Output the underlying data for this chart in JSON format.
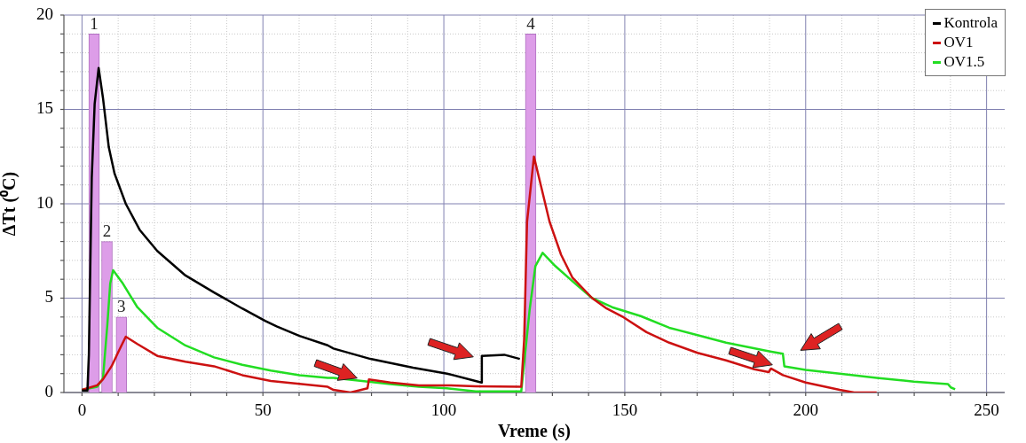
{
  "chart_data": {
    "type": "line",
    "xlabel": "Vreme (s)",
    "ylabel": "ΔTt (⁰C)",
    "xlim": [
      0,
      250
    ],
    "ylim": [
      0,
      20
    ],
    "xticks": [
      0,
      {
        "value": 10,
        "label": null
      },
      {
        "value": 20,
        "label": null
      },
      {
        "value": 30,
        "label": null
      },
      {
        "value": 40,
        "label": null
      },
      50,
      {
        "value": 60,
        "label": null
      },
      {
        "value": 70,
        "label": null
      },
      {
        "value": 80,
        "label": null
      },
      {
        "value": 90,
        "label": null
      },
      100,
      {
        "value": 110,
        "label": null
      },
      {
        "value": 120,
        "label": null
      },
      {
        "value": 130,
        "label": null
      },
      {
        "value": 140,
        "label": null
      },
      150,
      {
        "value": 160,
        "label": null
      },
      {
        "value": 170,
        "label": null
      },
      {
        "value": 180,
        "label": null
      },
      {
        "value": 190,
        "label": null
      },
      200,
      {
        "value": 210,
        "label": null
      },
      {
        "value": 220,
        "label": null
      },
      {
        "value": 230,
        "label": null
      },
      {
        "value": 240,
        "label": null
      },
      250
    ],
    "yticks": [
      0,
      {
        "value": 1,
        "label": null
      },
      {
        "value": 2,
        "label": null
      },
      {
        "value": 3,
        "label": null
      },
      {
        "value": 4,
        "label": null
      },
      5,
      {
        "value": 6,
        "label": null
      },
      {
        "value": 7,
        "label": null
      },
      {
        "value": 8,
        "label": null
      },
      {
        "value": 9,
        "label": null
      },
      10,
      {
        "value": 11,
        "label": null
      },
      {
        "value": 12,
        "label": null
      },
      {
        "value": 13,
        "label": null
      },
      {
        "value": 14,
        "label": null
      },
      15,
      {
        "value": 16,
        "label": null
      },
      {
        "value": 17,
        "label": null
      },
      {
        "value": 18,
        "label": null
      },
      {
        "value": 19,
        "label": null
      },
      20
    ],
    "annotations": [
      {
        "text": "1",
        "x": 3.35,
        "y": 19
      },
      {
        "text": "2",
        "x": 6.9,
        "y": 8
      },
      {
        "text": "3",
        "x": 10.9,
        "y": 4
      },
      {
        "text": "4",
        "x": 124,
        "y": 19
      }
    ],
    "grid": true,
    "legend": "top right",
    "marker": "none",
    "line_style": "solid",
    "series": [
      {
        "type": "bar",
        "color": "#dd9de8",
        "x": [
          3.35,
          6.9,
          10.9,
          124
        ],
        "values": [
          19,
          8,
          4,
          19
        ]
      },
      {
        "name": "Kontrola",
        "color": "#000000",
        "x": [
          0,
          1.5,
          1.9,
          2.7,
          3.5,
          4.6,
          5.8,
          7.4,
          9.0,
          12.1,
          16.0,
          20.8,
          28.6,
          36.5,
          44.3,
          50.6,
          53.8,
          60.1,
          67.9,
          69.5,
          79.7,
          91.5,
          100.9,
          110.4,
          110.5,
          116.7,
          121
        ],
        "values": [
          0.1,
          0.1,
          2.0,
          11.4,
          15.3,
          17.2,
          15.6,
          13.0,
          11.6,
          10.0,
          8.6,
          7.5,
          6.2,
          5.3,
          4.45,
          3.8,
          3.5,
          3.0,
          2.5,
          2.33,
          1.78,
          1.31,
          1.0,
          0.53,
          1.94,
          2.0,
          1.78
        ]
      },
      {
        "name": "OV1",
        "color": "#cc1111",
        "x": [
          0,
          4.2,
          5.8,
          8.2,
          10.1,
          12.1,
          15.3,
          20.8,
          28.6,
          36.5,
          44.3,
          52.2,
          60.1,
          67.9,
          69.5,
          74.2,
          78.9,
          79.3,
          85.2,
          93.1,
          100.9,
          108.8,
          121.4,
          122.2,
          123,
          124.9,
          126.9,
          129.2,
          132.4,
          135.5,
          141,
          145,
          149.7,
          156,
          162.3,
          170.1,
          178,
          185.8,
          189.8,
          190.4,
          193.7,
          200,
          209.4,
          213.4,
          219.6
        ],
        "values": [
          0.14,
          0.38,
          0.7,
          1.4,
          2.17,
          2.96,
          2.57,
          1.94,
          1.63,
          1.39,
          0.92,
          0.61,
          0.46,
          0.3,
          0.14,
          0.0,
          0.22,
          0.69,
          0.53,
          0.38,
          0.38,
          0.33,
          0.3,
          2.8,
          9.06,
          12.5,
          10.9,
          9.06,
          7.3,
          6.1,
          5.0,
          4.45,
          3.98,
          3.2,
          2.64,
          2.1,
          1.7,
          1.23,
          1.08,
          1.27,
          0.92,
          0.53,
          0.14,
          0.0,
          0.0
        ]
      },
      {
        "name": "OV1.5",
        "color": "#22dd22",
        "x": [
          0,
          4.2,
          5.8,
          7.0,
          7.8,
          8.6,
          11.3,
          15.3,
          20.8,
          28.6,
          36.5,
          44.3,
          52.2,
          60.1,
          67.9,
          69.5,
          77.4,
          85.2,
          93.1,
          100.9,
          108.8,
          121.4,
          123.7,
          125.3,
          127.3,
          130.8,
          136.3,
          141,
          146.5,
          154.4,
          162.3,
          170.1,
          178,
          190.2,
          193.7,
          194.1,
          200,
          209.4,
          219.6,
          229.9,
          239.3,
          240.1,
          241.3
        ],
        "values": [
          0.14,
          0.3,
          0.75,
          3.58,
          5.77,
          6.48,
          5.77,
          4.52,
          3.43,
          2.49,
          1.86,
          1.47,
          1.16,
          0.92,
          0.77,
          0.77,
          0.61,
          0.45,
          0.3,
          0.22,
          0.06,
          0.06,
          4.37,
          6.7,
          7.4,
          6.7,
          5.77,
          5.0,
          4.52,
          4.05,
          3.43,
          3.04,
          2.64,
          2.17,
          2.05,
          1.39,
          1.2,
          1.0,
          0.77,
          0.58,
          0.45,
          0.27,
          0.17
        ]
      }
    ]
  }
}
